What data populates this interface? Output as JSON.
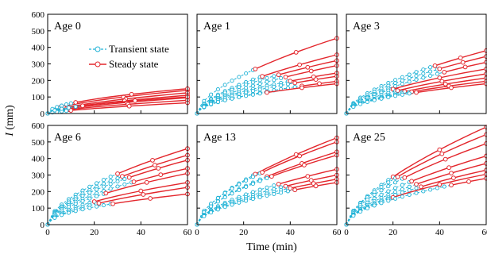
{
  "chart_data": {
    "type": "line",
    "xlabel": "Time (min)",
    "ylabel": "I (mm)",
    "ylabel_italic": "I",
    "ylabel_unit": " (mm)",
    "xlim": [
      0,
      60
    ],
    "ylim": [
      0,
      600
    ],
    "xticks": [
      0,
      20,
      40,
      60
    ],
    "yticks": [
      0,
      100,
      200,
      300,
      400,
      500,
      600
    ],
    "legend": {
      "placement": "top-left panel, right of title",
      "entries": [
        {
          "name": "Transient state",
          "color": "#1fb2d6",
          "line": "dashed",
          "marker": "open-circle"
        },
        {
          "name": "Steady state",
          "color": "#e3262c",
          "line": "solid",
          "marker": "open-circle"
        }
      ]
    },
    "colors": {
      "transient": "#1fb2d6",
      "steady": "#e3262c"
    },
    "panels": [
      {
        "title": "Age 0",
        "curves": [
          {
            "f": 140,
            "c": 5,
            "p": 0.55
          },
          {
            "f": 125,
            "c": 7,
            "p": 0.6
          },
          {
            "f": 110,
            "c": 6,
            "p": 0.6
          },
          {
            "f": 95,
            "c": 8,
            "p": 0.62
          },
          {
            "f": 80,
            "c": 9,
            "p": 0.65
          },
          {
            "f": 65,
            "c": 10,
            "p": 0.7
          },
          {
            "f": 150,
            "c": 12,
            "p": 0.5
          },
          {
            "f": 100,
            "c": 15,
            "p": 0.55
          }
        ]
      },
      {
        "title": "Age 1",
        "curves": [
          {
            "f": 455,
            "c": 25,
            "p": 0.6
          },
          {
            "f": 355,
            "c": 28,
            "p": 0.6
          },
          {
            "f": 320,
            "c": 35,
            "p": 0.58
          },
          {
            "f": 290,
            "c": 38,
            "p": 0.6
          },
          {
            "f": 245,
            "c": 40,
            "p": 0.55
          },
          {
            "f": 225,
            "c": 42,
            "p": 0.55
          },
          {
            "f": 195,
            "c": 45,
            "p": 0.55
          },
          {
            "f": 180,
            "c": 30,
            "p": 0.5
          }
        ]
      },
      {
        "title": "Age 3",
        "curves": [
          {
            "f": 380,
            "c": 38,
            "p": 0.6
          },
          {
            "f": 345,
            "c": 40,
            "p": 0.6
          },
          {
            "f": 310,
            "c": 42,
            "p": 0.6
          },
          {
            "f": 270,
            "c": 20,
            "p": 0.55
          },
          {
            "f": 240,
            "c": 22,
            "p": 0.55
          },
          {
            "f": 215,
            "c": 25,
            "p": 0.55
          },
          {
            "f": 195,
            "c": 28,
            "p": 0.52
          },
          {
            "f": 180,
            "c": 30,
            "p": 0.5
          }
        ]
      },
      {
        "title": "Age 6",
        "curves": [
          {
            "f": 460,
            "c": 30,
            "p": 0.58
          },
          {
            "f": 420,
            "c": 32,
            "p": 0.58
          },
          {
            "f": 390,
            "c": 35,
            "p": 0.58
          },
          {
            "f": 340,
            "c": 37,
            "p": 0.56
          },
          {
            "f": 310,
            "c": 25,
            "p": 0.56
          },
          {
            "f": 255,
            "c": 20,
            "p": 0.55
          },
          {
            "f": 225,
            "c": 22,
            "p": 0.55
          },
          {
            "f": 185,
            "c": 28,
            "p": 0.5
          }
        ]
      },
      {
        "title": "Age 13",
        "curves": [
          {
            "f": 525,
            "c": 25,
            "p": 0.62
          },
          {
            "f": 500,
            "c": 28,
            "p": 0.6
          },
          {
            "f": 440,
            "c": 30,
            "p": 0.6
          },
          {
            "f": 420,
            "c": 32,
            "p": 0.58
          },
          {
            "f": 335,
            "c": 35,
            "p": 0.58
          },
          {
            "f": 300,
            "c": 38,
            "p": 0.56
          },
          {
            "f": 275,
            "c": 40,
            "p": 0.55
          },
          {
            "f": 255,
            "c": 42,
            "p": 0.54
          }
        ]
      },
      {
        "title": "Age 25",
        "curves": [
          {
            "f": 590,
            "c": 20,
            "p": 0.65
          },
          {
            "f": 545,
            "c": 22,
            "p": 0.63
          },
          {
            "f": 490,
            "c": 25,
            "p": 0.62
          },
          {
            "f": 415,
            "c": 28,
            "p": 0.6
          },
          {
            "f": 370,
            "c": 30,
            "p": 0.6
          },
          {
            "f": 330,
            "c": 32,
            "p": 0.58
          },
          {
            "f": 305,
            "c": 20,
            "p": 0.56
          },
          {
            "f": 280,
            "c": 45,
            "p": 0.55
          }
        ]
      }
    ]
  }
}
